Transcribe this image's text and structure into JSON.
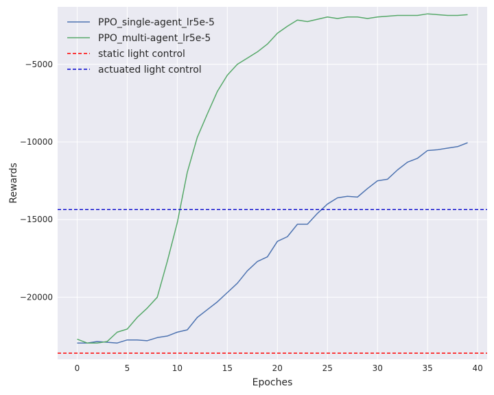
{
  "chart_data": {
    "type": "line",
    "title": "",
    "xlabel": "Epoches",
    "ylabel": "Rewards",
    "xlim": [
      -1.95,
      40.95
    ],
    "ylim": [
      -24000,
      -1300
    ],
    "grid": true,
    "legend_position": "top-left",
    "xticks": [
      0,
      5,
      10,
      15,
      20,
      25,
      30,
      35,
      40
    ],
    "xtick_labels": [
      "0",
      "5",
      "10",
      "15",
      "20",
      "25",
      "30",
      "35",
      "40"
    ],
    "yticks": [
      -5000,
      -10000,
      -15000,
      -20000
    ],
    "ytick_labels": [
      "−5000",
      "−10000",
      "−15000",
      "−20000"
    ],
    "x": [
      0,
      1,
      2,
      3,
      4,
      5,
      6,
      7,
      8,
      9,
      10,
      11,
      12,
      13,
      14,
      15,
      16,
      17,
      18,
      19,
      20,
      21,
      22,
      23,
      24,
      25,
      26,
      27,
      28,
      29,
      30,
      31,
      32,
      33,
      34,
      35,
      36,
      37,
      38,
      39
    ],
    "series": [
      {
        "name": "PPO_single-agent_lr5e-5",
        "color": "#4c72b0",
        "style": "solid",
        "values": [
          -22950,
          -22950,
          -22850,
          -22900,
          -22950,
          -22750,
          -22750,
          -22800,
          -22600,
          -22500,
          -22250,
          -22100,
          -21300,
          -20800,
          -20300,
          -19700,
          -19100,
          -18300,
          -17700,
          -17400,
          -16400,
          -16100,
          -15300,
          -15300,
          -14600,
          -14000,
          -13600,
          -13500,
          -13550,
          -13000,
          -12500,
          -12400,
          -11800,
          -11300,
          -11050,
          -10550,
          -10500,
          -10400,
          -10300,
          -10050
        ]
      },
      {
        "name": "PPO_multi-agent_lr5e-5",
        "color": "#55a868",
        "style": "solid",
        "values": [
          -22700,
          -22950,
          -22950,
          -22850,
          -22250,
          -22050,
          -21300,
          -20700,
          -20000,
          -17700,
          -15200,
          -11950,
          -9700,
          -8200,
          -6750,
          -5700,
          -5000,
          -4600,
          -4200,
          -3700,
          -3000,
          -2550,
          -2150,
          -2250,
          -2100,
          -1950,
          -2050,
          -1950,
          -1950,
          -2050,
          -1950,
          -1900,
          -1850,
          -1850,
          -1850,
          -1750,
          -1800,
          -1850,
          -1850,
          -1800
        ]
      },
      {
        "name": "static light control",
        "color": "#ff0000",
        "style": "dashed",
        "constant": -23600
      },
      {
        "name": "actuated light control",
        "color": "#0000cc",
        "style": "dashed",
        "constant": -14350
      }
    ]
  }
}
